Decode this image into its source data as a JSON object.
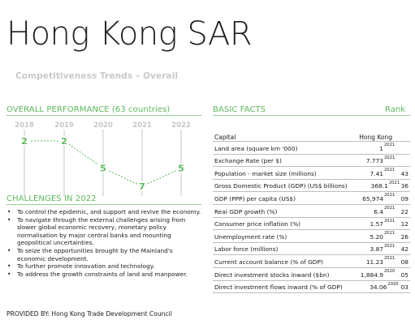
{
  "header": {
    "title": "Hong Kong SAR",
    "subtitle": "Competitiveness Trends – Overall"
  },
  "overall": {
    "heading": "OVERALL PERFORMANCE (63 countries)",
    "accent": "#5cb85c",
    "years": [
      "2018",
      "2019",
      "2020",
      "2021",
      "2022"
    ],
    "ranks": [
      2,
      2,
      5,
      7,
      5
    ]
  },
  "challenges": {
    "heading": "CHALLENGES IN 2022",
    "items": [
      "To control the epidemic, and support and revive the economy.",
      "To navigate through the external challenges arising from slower global economic recovery, monetary policy normalisation by major central banks and mounting geopolitical uncertainties.",
      "To seize the opportunities brought by the Mainland's economic development.",
      "To further promote innovation and technology.",
      "To address the growth constraints of land and manpower."
    ]
  },
  "facts": {
    "heading": "BASIC FACTS",
    "rank_heading": "Rank",
    "col_capital": "Capital",
    "col_country": "Hong Kong",
    "rows": [
      {
        "label": "Land area (square km '000)",
        "value": "1",
        "year": "2021",
        "rank": ""
      },
      {
        "label": "Exchange Rate (per $)",
        "value": "7.773",
        "year": "2021",
        "rank": ""
      },
      {
        "label": "Population - market size (millions)",
        "value": "7.41",
        "year": "2021",
        "rank": "43"
      },
      {
        "label": "Gross Domestic Product (GDP) (US$ billions)",
        "value": "368.1",
        "year": "2021",
        "rank": "36"
      },
      {
        "label": "GDP (PPP) per capita (US$)",
        "value": "65,974",
        "year": "2021",
        "rank": "09"
      },
      {
        "label": "Real GDP growth (%)",
        "value": "6.4",
        "year": "2021",
        "rank": "22"
      },
      {
        "label": "Consumer price inflation (%)",
        "value": "1.57",
        "year": "2021",
        "rank": "12"
      },
      {
        "label": "Unemployment rate (%)",
        "value": "5.20",
        "year": "2021",
        "rank": "26"
      },
      {
        "label": "Labor force (millions)",
        "value": "3.87",
        "year": "2021",
        "rank": "42"
      },
      {
        "label": "Current account balance (% of GDP)",
        "value": "11.23",
        "year": "2021",
        "rank": "08"
      },
      {
        "label": "Direct investment stocks inward ($bn)",
        "value": "1,884.9",
        "year": "2020",
        "rank": "05"
      },
      {
        "label": "Direct investment flows inward (% of GDP)",
        "value": "34.06",
        "year": "2020",
        "rank": "03"
      }
    ]
  },
  "footer": {
    "provided": "PROVIDED BY: Hong Kong Trade Development Council"
  }
}
